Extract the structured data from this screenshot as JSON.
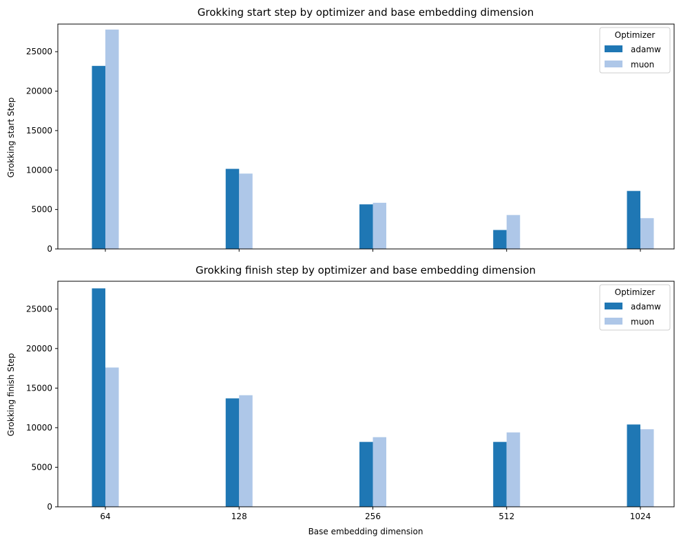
{
  "colors": {
    "adamw": "#1f77b4",
    "muon": "#aec7e8"
  },
  "chart_data": [
    {
      "type": "bar",
      "title": "Grokking start step by optimizer and base embedding dimension",
      "xlabel": "",
      "ylabel": "Grokking start Step",
      "categories": [
        "64",
        "128",
        "256",
        "512",
        "1024"
      ],
      "series": [
        {
          "name": "adamw",
          "values": [
            23200,
            10150,
            5650,
            2400,
            7350
          ]
        },
        {
          "name": "muon",
          "values": [
            27800,
            9550,
            5850,
            4300,
            3900
          ]
        }
      ],
      "ylim": [
        0,
        28500
      ],
      "yticks": [
        0,
        5000,
        10000,
        15000,
        20000,
        25000
      ],
      "show_xticklabels": false,
      "legend": {
        "title": "Optimizer",
        "placement": "top-right"
      },
      "grid": false
    },
    {
      "type": "bar",
      "title": "Grokking finish step by optimizer and base embedding dimension",
      "xlabel": "Base embedding dimension",
      "ylabel": "Grokking finish Step",
      "categories": [
        "64",
        "128",
        "256",
        "512",
        "1024"
      ],
      "series": [
        {
          "name": "adamw",
          "values": [
            27600,
            13700,
            8200,
            8200,
            10400
          ]
        },
        {
          "name": "muon",
          "values": [
            17600,
            14100,
            8800,
            9400,
            9800
          ]
        }
      ],
      "ylim": [
        0,
        28500
      ],
      "yticks": [
        0,
        5000,
        10000,
        15000,
        20000,
        25000
      ],
      "show_xticklabels": true,
      "legend": {
        "title": "Optimizer",
        "placement": "top-right"
      },
      "grid": false
    }
  ]
}
